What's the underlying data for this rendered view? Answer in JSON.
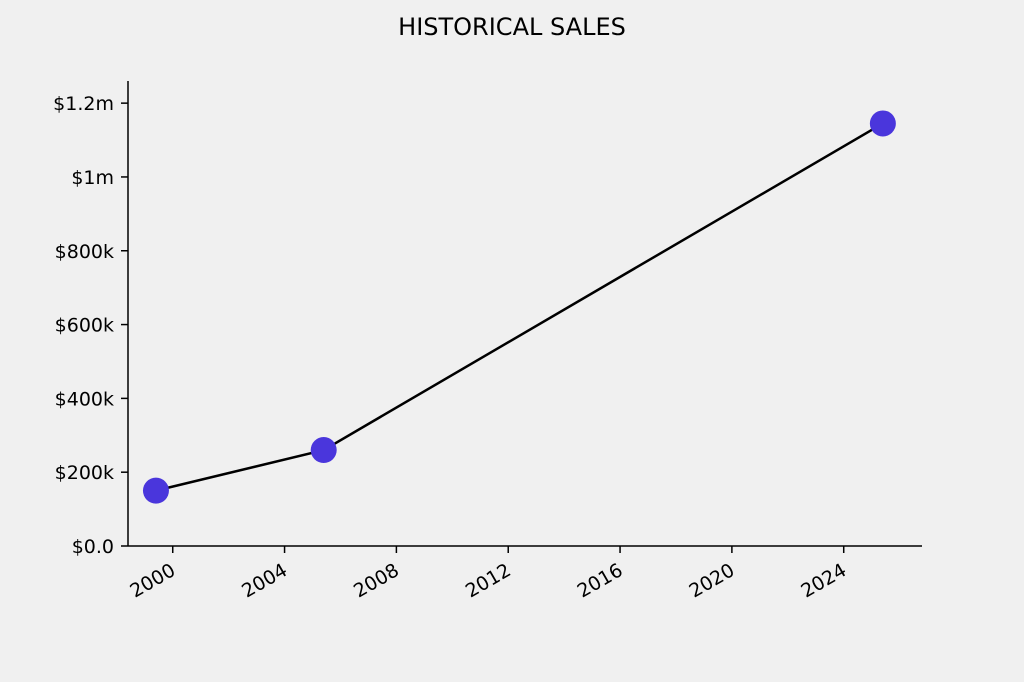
{
  "chart_data": {
    "type": "line",
    "title": "HISTORICAL SALES",
    "xlabel": "",
    "ylabel": "",
    "x_ticks": [
      "2000",
      "2004",
      "2008",
      "2012",
      "2016",
      "2020",
      "2024"
    ],
    "x_tick_values": [
      2000,
      2004,
      2008,
      2012,
      2016,
      2020,
      2024
    ],
    "y_ticks": [
      "$0.0",
      "$200k",
      "$400k",
      "$600k",
      "$800k",
      "$1m",
      "$1.2m"
    ],
    "y_tick_values": [
      0,
      200000,
      400000,
      600000,
      800000,
      1000000,
      1200000
    ],
    "xlim": [
      1998.4,
      2026.8
    ],
    "ylim": [
      0,
      1260000
    ],
    "series": [
      {
        "x": [
          1999.4,
          2005.4,
          2025.4
        ],
        "y": [
          150000,
          260000,
          1145000
        ]
      }
    ],
    "line_color": "#000000",
    "marker_color": "#4a36dc",
    "grid": false,
    "legend": "none"
  }
}
